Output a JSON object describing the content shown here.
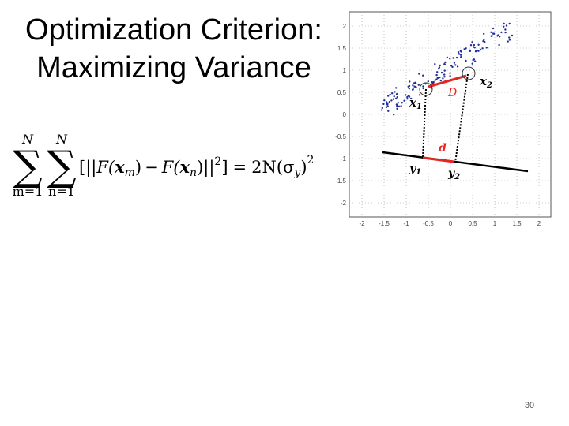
{
  "slide": {
    "title_line1": "Optimization Criterion:",
    "title_line2": "Maximizing Variance",
    "page_number": "30"
  },
  "formula": {
    "upper_limit_1": "N",
    "upper_limit_2": "N",
    "lower_limit_1": "m=1",
    "lower_limit_2": "n=1",
    "open_bracket": "[||",
    "F_m": "F(",
    "x_m": "x",
    "sub_m": "m",
    "close_m": ")",
    "minus": "−",
    "F_n": "F(",
    "x_n": "x",
    "sub_n": "n",
    "close_n": ")||",
    "square_1": "2",
    "close_bracket": "]",
    "equals": "=",
    "rhs_prefix": "2N(σ",
    "rhs_sub": "y",
    "rhs_close": ")",
    "square_2": "2"
  },
  "figure": {
    "y_ticks": [
      "2",
      "1.5",
      "1",
      "0.5",
      "0",
      "-0.5",
      "-1",
      "-1.5",
      "-2"
    ],
    "x_ticks": [
      "-2",
      "-1.5",
      "-1",
      "-0.5",
      "0",
      "0.5",
      "1",
      "1.5",
      "2"
    ],
    "label_x1": "x",
    "label_x1_sub": "1",
    "label_x2": "x",
    "label_x2_sub": "2",
    "label_y1": "y",
    "label_y1_sub": "1",
    "label_y2": "y",
    "label_y2_sub": "2",
    "label_D": "D",
    "label_d": "d",
    "point_color": "#1f2f9c",
    "highlight_color": "#e8261f"
  }
}
